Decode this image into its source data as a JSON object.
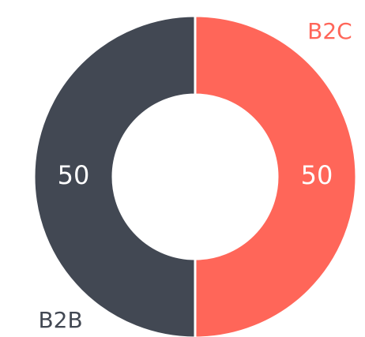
{
  "chart_data": {
    "type": "pie",
    "donut": true,
    "categories": [
      "B2C",
      "B2B"
    ],
    "values": [
      50,
      50
    ],
    "colors": [
      "#ff6659",
      "#424853"
    ]
  }
}
